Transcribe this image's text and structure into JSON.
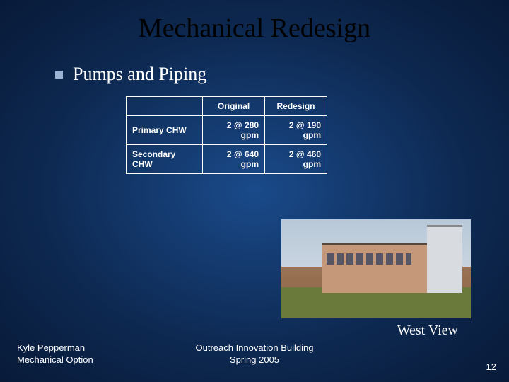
{
  "title": "Mechanical Redesign",
  "subtitle": "Pumps and Piping",
  "table": {
    "headers": {
      "col1": "Original",
      "col2": "Redesign"
    },
    "rows": [
      {
        "label": "Primary CHW",
        "orig": "2 @ 280 gpm",
        "redesign": "2 @ 190 gpm"
      },
      {
        "label": "Secondary CHW",
        "orig": "2 @ 640 gpm",
        "redesign": "2 @ 460 gpm"
      }
    ],
    "border_color": "#ffffff",
    "text_color": "#ffffff",
    "font_size": 12
  },
  "photo_caption": "West View",
  "footer": {
    "author_line1": "Kyle Pepperman",
    "author_line2": "Mechanical Option",
    "center_line1": "Outreach Innovation Building",
    "center_line2": "Spring 2005",
    "page": "12"
  },
  "colors": {
    "bg_center": "#1a4a8a",
    "bg_edge": "#081a38",
    "title": "#000000",
    "bullet": "#9db3d4",
    "text": "#ffffff"
  }
}
